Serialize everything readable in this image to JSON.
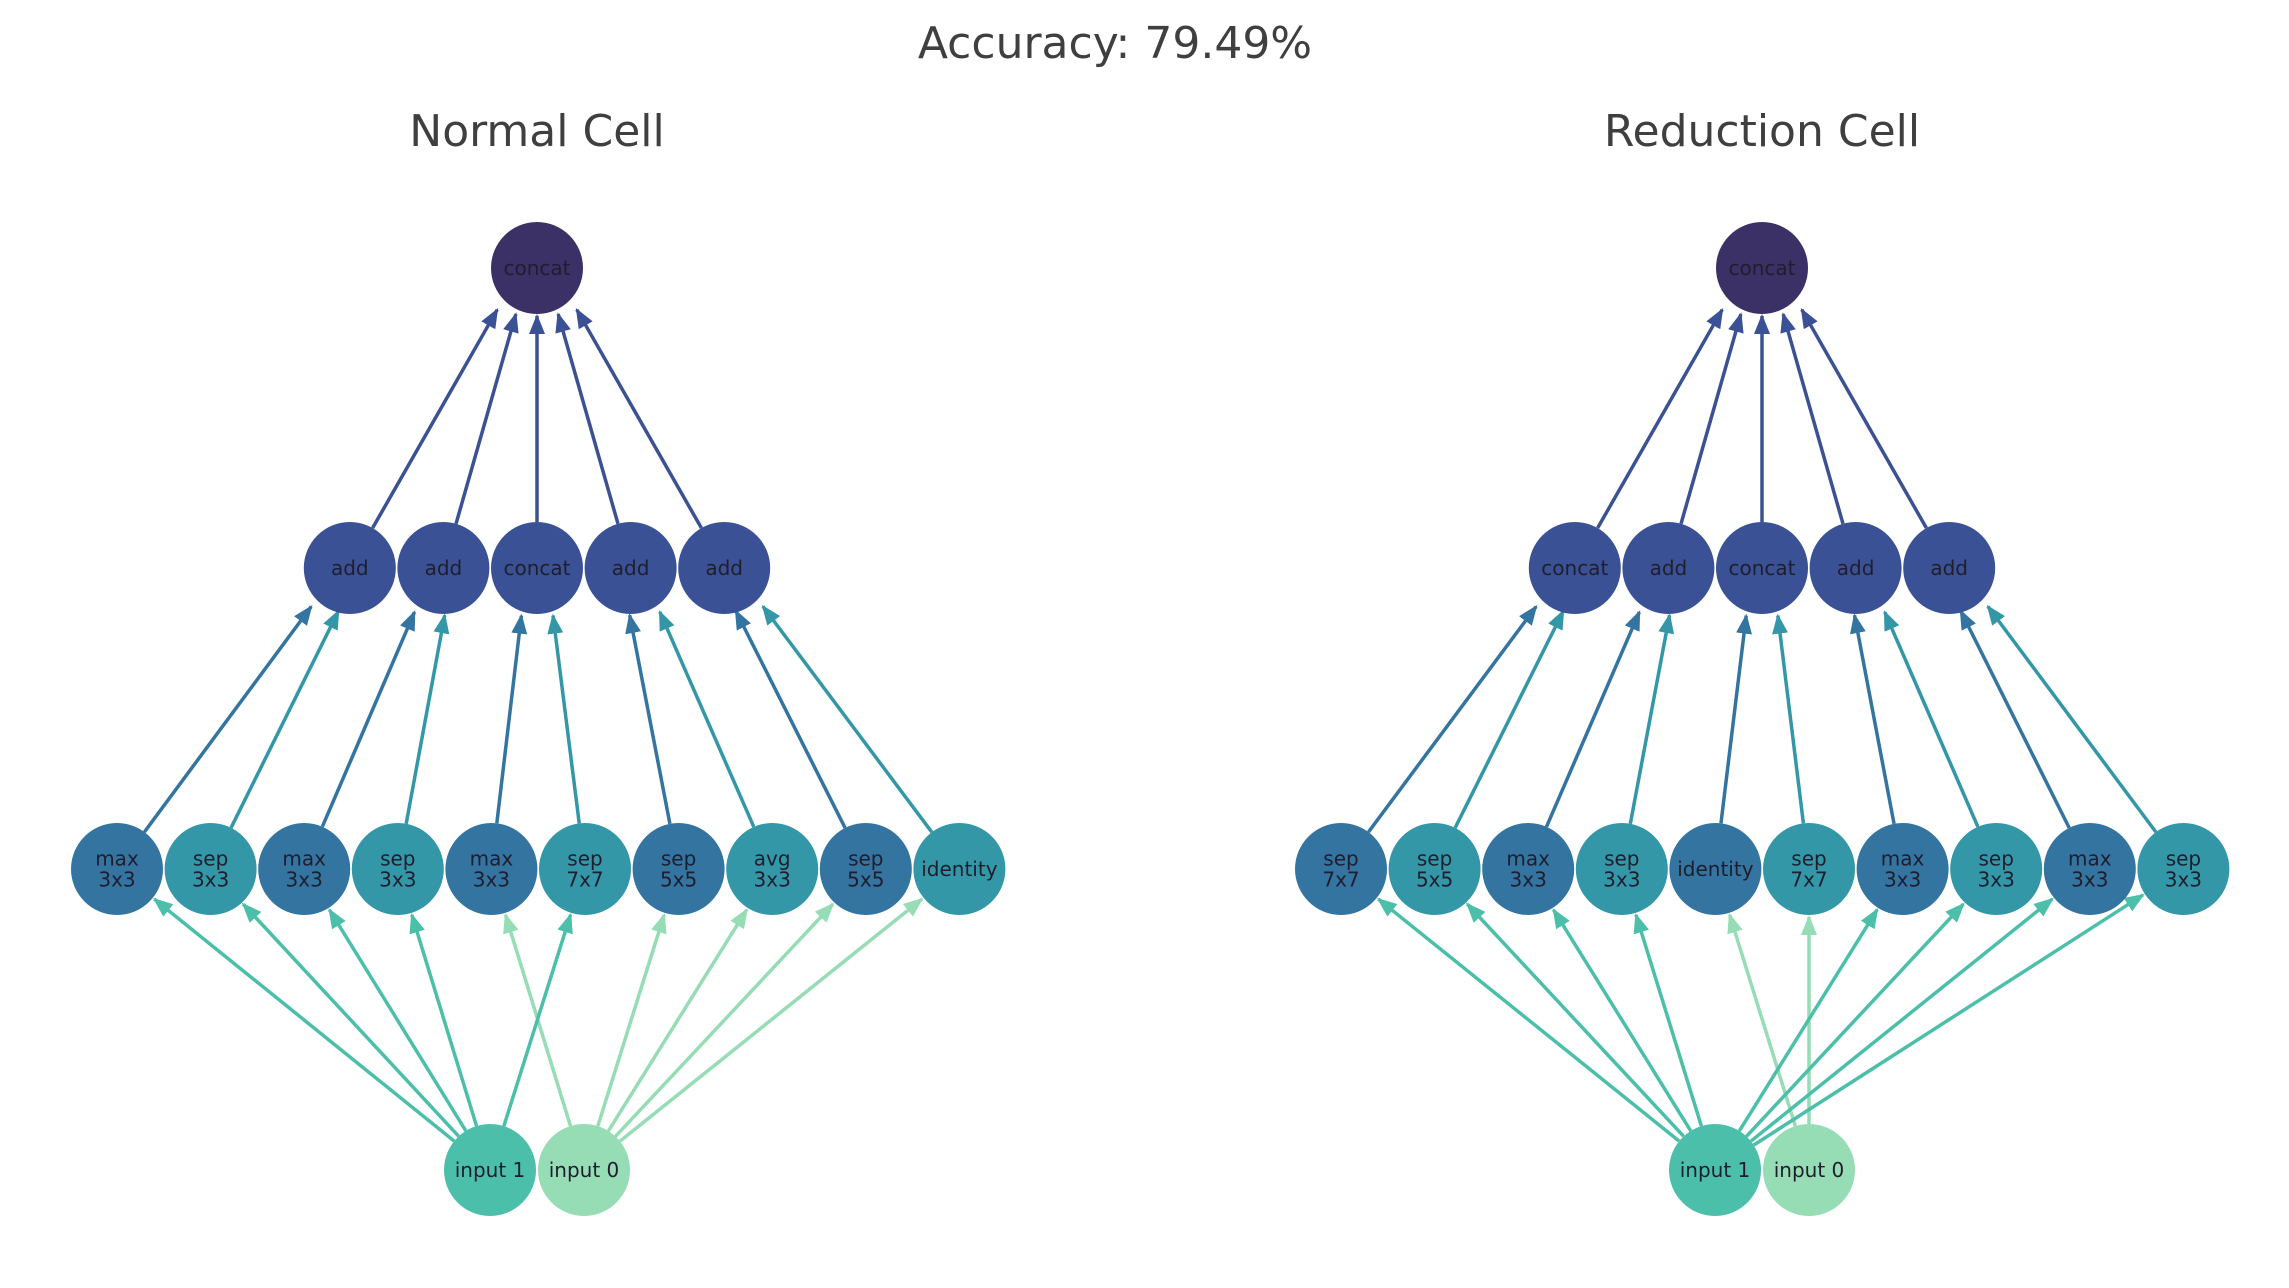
{
  "accuracy_label": "Accuracy: 79.49%",
  "colors": {
    "input0": "#96dcb4",
    "input1": "#4bbfaa",
    "op_dark": "#3474a0",
    "op_teal": "#3397a7",
    "combine": "#3b5195",
    "concat_out": "#3c3166",
    "edge_light": "#96dcb4",
    "edge_mid": "#4bbfaa",
    "edge_op_dark": "#3474a0",
    "edge_op_teal": "#3397a7",
    "edge_combine": "#3b5195"
  },
  "cells": [
    {
      "id": "normal",
      "title": "Normal Cell",
      "output": "concat",
      "combiners": [
        "add",
        "add",
        "concat",
        "add",
        "add"
      ],
      "ops": [
        {
          "label": "max\n3x3",
          "source": "input 1"
        },
        {
          "label": "sep\n3x3",
          "source": "input 1"
        },
        {
          "label": "max\n3x3",
          "source": "input 1"
        },
        {
          "label": "sep\n3x3",
          "source": "input 1"
        },
        {
          "label": "max\n3x3",
          "source": "input 0"
        },
        {
          "label": "sep\n7x7",
          "source": "input 1"
        },
        {
          "label": "sep\n5x5",
          "source": "input 0"
        },
        {
          "label": "avg\n3x3",
          "source": "input 0"
        },
        {
          "label": "sep\n5x5",
          "source": "input 0"
        },
        {
          "label": "identity",
          "source": "input 0"
        }
      ],
      "inputs": [
        "input 1",
        "input 0"
      ]
    },
    {
      "id": "reduction",
      "title": "Reduction Cell",
      "output": "concat",
      "combiners": [
        "concat",
        "add",
        "concat",
        "add",
        "add"
      ],
      "ops": [
        {
          "label": "sep\n7x7",
          "source": "input 1"
        },
        {
          "label": "sep\n5x5",
          "source": "input 1"
        },
        {
          "label": "max\n3x3",
          "source": "input 1"
        },
        {
          "label": "sep\n3x3",
          "source": "input 1"
        },
        {
          "label": "identity",
          "source": "input 0"
        },
        {
          "label": "sep\n7x7",
          "source": "input 0"
        },
        {
          "label": "max\n3x3",
          "source": "input 1"
        },
        {
          "label": "sep\n3x3",
          "source": "input 1"
        },
        {
          "label": "max\n3x3",
          "source": "input 1"
        },
        {
          "label": "sep\n3x3",
          "source": "input 1"
        }
      ],
      "inputs": [
        "input 1",
        "input 0"
      ]
    }
  ]
}
